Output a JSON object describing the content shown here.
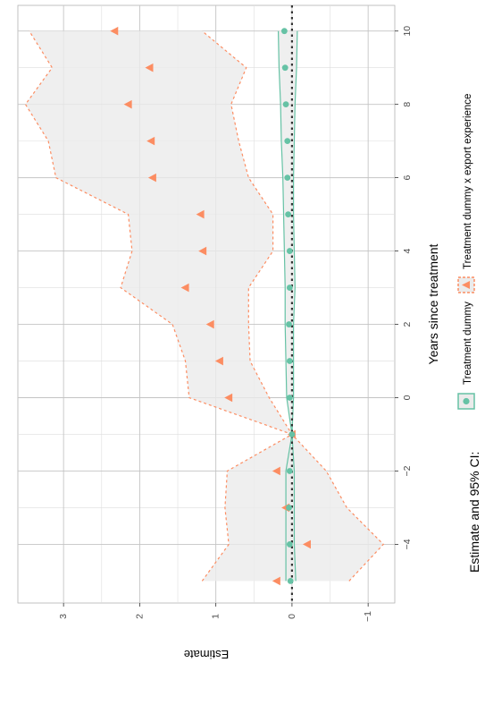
{
  "chart_data": {
    "type": "scatter",
    "orientation": "rotated-90-ccw",
    "xlabel": "Years since treatment",
    "ylabel": "Estimate",
    "xlim": [
      -5.6,
      10.7
    ],
    "ylim": [
      -1.35,
      3.6
    ],
    "x_ticks": [
      -4,
      -2,
      0,
      2,
      4,
      6,
      8,
      10
    ],
    "x_tick_labels": [
      "−4",
      "−2",
      "0",
      "2",
      "4",
      "6",
      "8",
      "10"
    ],
    "y_ticks": [
      -1,
      0,
      1,
      2,
      3
    ],
    "y_tick_labels": [
      "−1",
      "0",
      "1",
      "2",
      "3"
    ],
    "grid": true,
    "reference_line_y": 0,
    "legend": {
      "position": "bottom",
      "title": "Estimate and 95% CI:",
      "entries": [
        "Treatment dummy",
        "Treatment dummy x export experience"
      ]
    },
    "colors": {
      "treatment": "#66c2a5",
      "interaction": "#fc8d62",
      "ribbon": "#ebebeb",
      "reference": "#333333"
    },
    "series": [
      {
        "name": "Treatment dummy",
        "marker": "circle",
        "x": [
          -5,
          -4,
          -3,
          -2,
          -1,
          0,
          1,
          2,
          3,
          4,
          5,
          6,
          7,
          8,
          9,
          10
        ],
        "values": [
          0.02,
          0.03,
          0.04,
          0.03,
          0.0,
          0.03,
          0.03,
          0.04,
          0.03,
          0.03,
          0.05,
          0.06,
          0.06,
          0.08,
          0.09,
          0.1
        ],
        "ci_low": [
          -0.05,
          -0.03,
          -0.03,
          -0.03,
          0.0,
          -0.02,
          -0.02,
          -0.02,
          -0.04,
          -0.03,
          -0.02,
          -0.02,
          -0.03,
          -0.04,
          -0.06,
          -0.07
        ],
        "ci_high": [
          0.08,
          0.08,
          0.08,
          0.08,
          0.0,
          0.07,
          0.08,
          0.09,
          0.09,
          0.1,
          0.11,
          0.12,
          0.14,
          0.15,
          0.17,
          0.18
        ]
      },
      {
        "name": "Treatment dummy x export experience",
        "marker": "triangle",
        "x": [
          -5,
          -4,
          -3,
          -2,
          -1,
          0,
          1,
          2,
          3,
          4,
          5,
          6,
          7,
          8,
          9,
          10
        ],
        "values": [
          0.2,
          -0.2,
          0.08,
          0.2,
          0.0,
          0.83,
          0.95,
          1.07,
          1.4,
          1.17,
          1.2,
          1.83,
          1.85,
          2.15,
          1.87,
          2.33
        ],
        "ci_low": [
          -0.75,
          -1.2,
          -0.72,
          -0.45,
          0.0,
          0.3,
          0.55,
          0.57,
          0.57,
          0.25,
          0.25,
          0.57,
          0.7,
          0.8,
          0.6,
          1.18
        ],
        "ci_high": [
          1.18,
          0.83,
          0.88,
          0.85,
          0.0,
          1.35,
          1.4,
          1.57,
          2.25,
          2.1,
          2.15,
          3.1,
          3.2,
          3.5,
          3.15,
          3.45
        ]
      }
    ]
  }
}
